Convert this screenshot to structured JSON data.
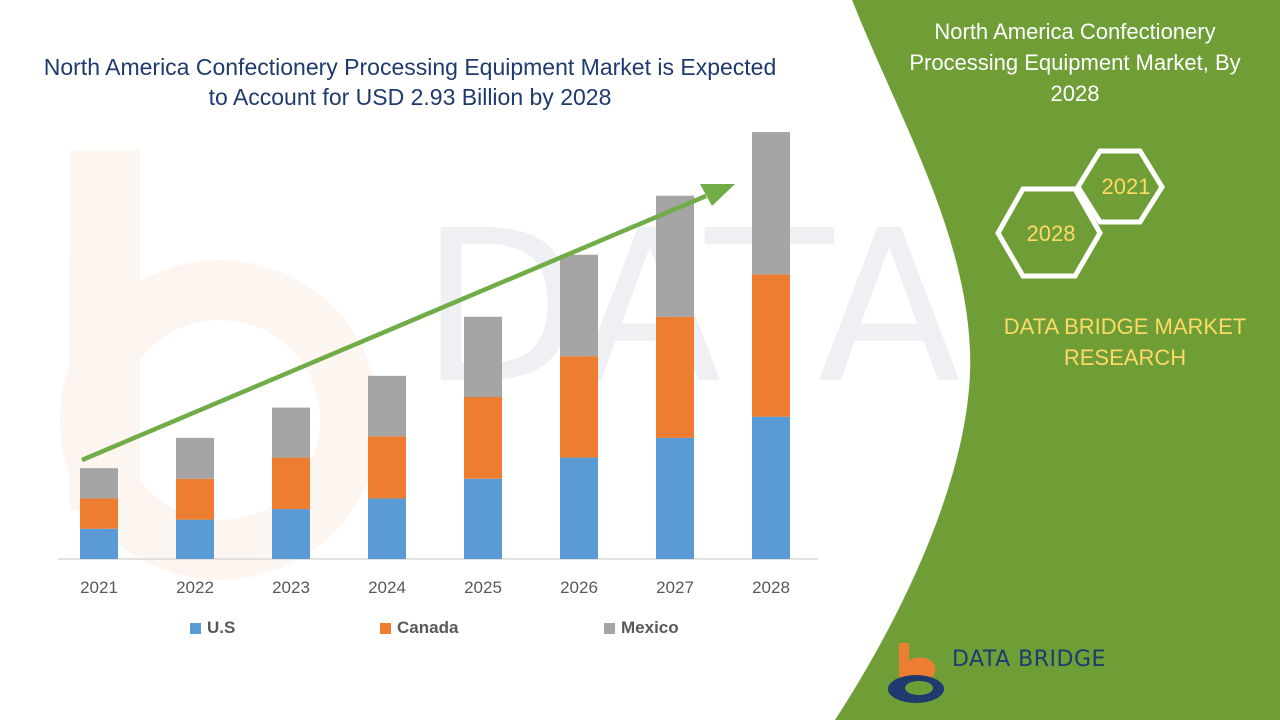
{
  "title": "North America Confectionery Processing Equipment Market is Expected to Account for USD 2.93 Billion by 2028",
  "side_panel": {
    "title": "North America Confectionery Processing Equipment Market, By 2028",
    "hex_start": "2021",
    "hex_end": "2028",
    "brand": "DATA BRIDGE MARKET RESEARCH",
    "logo_text": "DATA BRIDGE"
  },
  "colors": {
    "panel_green": "#6f9e37",
    "us": "#5b9bd5",
    "canada": "#ed7d31",
    "mexico": "#a5a5a5",
    "arrow": "#70ad47",
    "title": "#1f3a6e",
    "hex_text": "#ffd966"
  },
  "chart_data": {
    "type": "bar",
    "stacked": true,
    "categories": [
      "2021",
      "2022",
      "2023",
      "2024",
      "2025",
      "2026",
      "2027",
      "2028"
    ],
    "series": [
      {
        "name": "U.S",
        "values": [
          1.0,
          1.3,
          1.65,
          2.0,
          2.65,
          3.35,
          4.0,
          4.7
        ]
      },
      {
        "name": "Canada",
        "values": [
          1.0,
          1.35,
          1.7,
          2.05,
          2.7,
          3.35,
          4.0,
          4.7
        ]
      },
      {
        "name": "Mexico",
        "values": [
          1.0,
          1.35,
          1.65,
          2.0,
          2.65,
          3.35,
          4.0,
          4.7
        ]
      }
    ],
    "ylim": [
      0,
      14.5
    ],
    "trend_arrow": true,
    "legend_position": "bottom",
    "grid": false
  }
}
